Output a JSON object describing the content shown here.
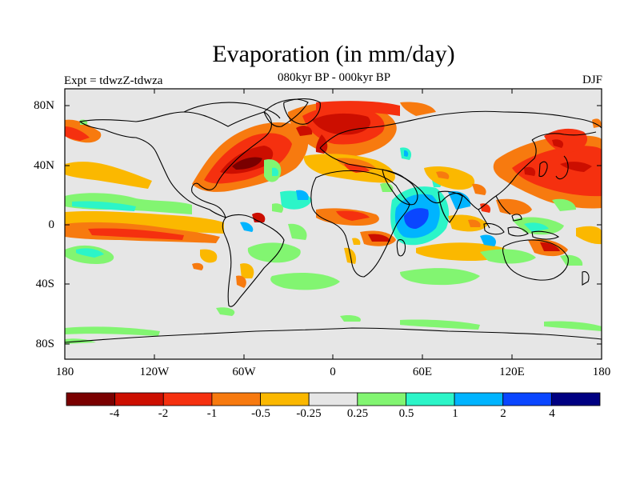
{
  "map": {
    "title": "Evaporation (in mm/day)",
    "subtitle": "080kyr BP - 000kyr BP",
    "left_label": "Expt = tdwzZ-tdwza",
    "right_label": "DJF",
    "lat_ticks": [
      "80N",
      "40N",
      "0",
      "40S",
      "80S"
    ],
    "lon_ticks": [
      "180",
      "120W",
      "60W",
      "0",
      "60E",
      "120E",
      "180"
    ],
    "background_color": "#e6e6e6"
  },
  "colorbar": {
    "labels": [
      "-4",
      "-2",
      "-1",
      "-0.5",
      "-0.25",
      "0.25",
      "0.5",
      "1",
      "2",
      "4"
    ],
    "colors": [
      "#7a0000",
      "#cc0e00",
      "#f5300f",
      "#f77a0f",
      "#fbb800",
      "#e6e6e6",
      "#82f571",
      "#2cf5c8",
      "#00b4ff",
      "#0a46ff",
      "#000082"
    ]
  }
}
